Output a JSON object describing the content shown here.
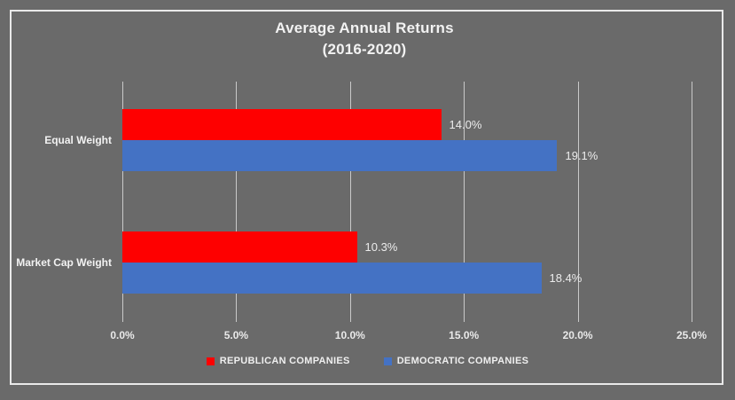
{
  "title": {
    "line1": "Average Annual Returns",
    "line2": "(2016-2020)"
  },
  "chart_data": {
    "type": "bar",
    "orientation": "horizontal",
    "title": "Average Annual Returns (2016-2020)",
    "categories": [
      "Equal Weight",
      "Market Cap Weight"
    ],
    "series": [
      {
        "name": "REPUBLICAN COMPANIES",
        "color": "#fe0000",
        "values": [
          14.0,
          10.3
        ],
        "data_labels": [
          "14.0%",
          "10.3%"
        ]
      },
      {
        "name": "DEMOCRATIC COMPANIES",
        "color": "#4472c4",
        "values": [
          19.1,
          18.4
        ],
        "data_labels": [
          "19.1%",
          "18.4%"
        ]
      }
    ],
    "x_axis": {
      "min": 0,
      "max": 25,
      "tick_labels": [
        "0.0%",
        "5.0%",
        "10.0%",
        "15.0%",
        "20.0%",
        "25.0%"
      ]
    },
    "grid": true,
    "legend_position": "bottom"
  },
  "colors": {
    "background": "#6a6a6a",
    "frame_border": "#e9e9e9",
    "gridline": "#c9c9c9",
    "republican": "#fe0000",
    "democratic": "#4472c4",
    "text": "#f2f2f2"
  }
}
